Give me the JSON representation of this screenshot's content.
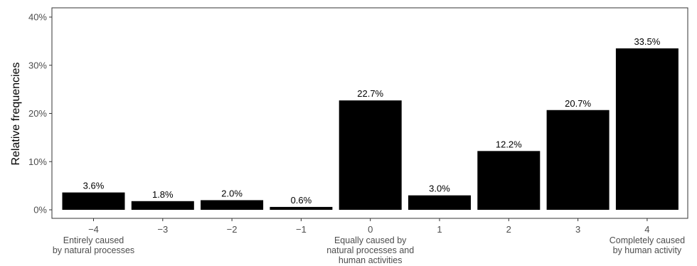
{
  "chart_data": {
    "type": "bar",
    "categories": [
      "−4",
      "−3",
      "−2",
      "−1",
      "0",
      "1",
      "2",
      "3",
      "4"
    ],
    "values": [
      3.6,
      1.8,
      2.0,
      0.6,
      22.7,
      3.0,
      12.2,
      20.7,
      33.5
    ],
    "value_labels": [
      "3.6%",
      "1.8%",
      "2.0%",
      "0.6%",
      "22.7%",
      "3.0%",
      "12.2%",
      "20.7%",
      "33.5%"
    ],
    "ylabel": "Relative frequencies",
    "ylim": [
      0,
      40
    ],
    "y_ticks": [
      0,
      10,
      20,
      30,
      40
    ],
    "y_tick_labels": [
      "0%",
      "10%",
      "20%",
      "30%",
      "40%"
    ],
    "grid": false,
    "bar_color": "#000000",
    "category_descriptions": [
      {
        "category_index": 0,
        "anchor": "middle",
        "lines": [
          "Entirely caused",
          "by natural processes"
        ]
      },
      {
        "category_index": 4,
        "anchor": "middle",
        "lines": [
          "Equally caused by",
          "natural processes and",
          "human activities"
        ]
      },
      {
        "category_index": 8,
        "anchor": "middle",
        "lines": [
          "Completely caused",
          "by human activity"
        ]
      }
    ]
  }
}
